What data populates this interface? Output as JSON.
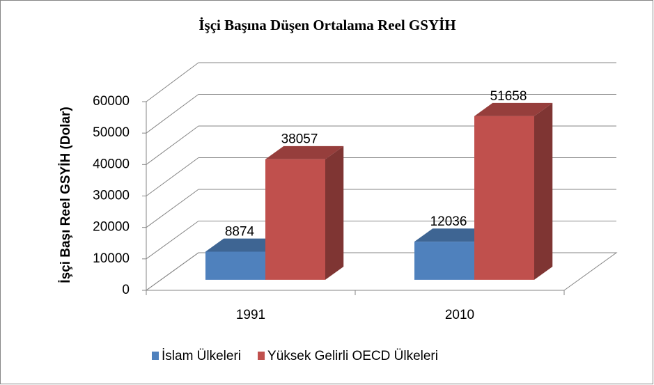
{
  "chart_data": {
    "type": "bar3d",
    "title": "İşçi Başına Düşen Ortalama Reel GSYİH",
    "y_label": "İşçi Başı Reel GSYİH (Dolar)",
    "categories": [
      "1991",
      "2010"
    ],
    "series": [
      {
        "name": "İslam Ülkeleri",
        "color": "#4f81bd",
        "values": [
          8874,
          12036
        ]
      },
      {
        "name": "Yüksek Gelirli OECD Ülkeleri",
        "color": "#c0504d",
        "values": [
          38057,
          51658
        ]
      }
    ],
    "ylim": [
      0,
      60000
    ],
    "yticks": [
      0,
      10000,
      20000,
      30000,
      40000,
      50000,
      60000
    ],
    "grid": true,
    "data_labels": true,
    "legend": "bottom"
  }
}
